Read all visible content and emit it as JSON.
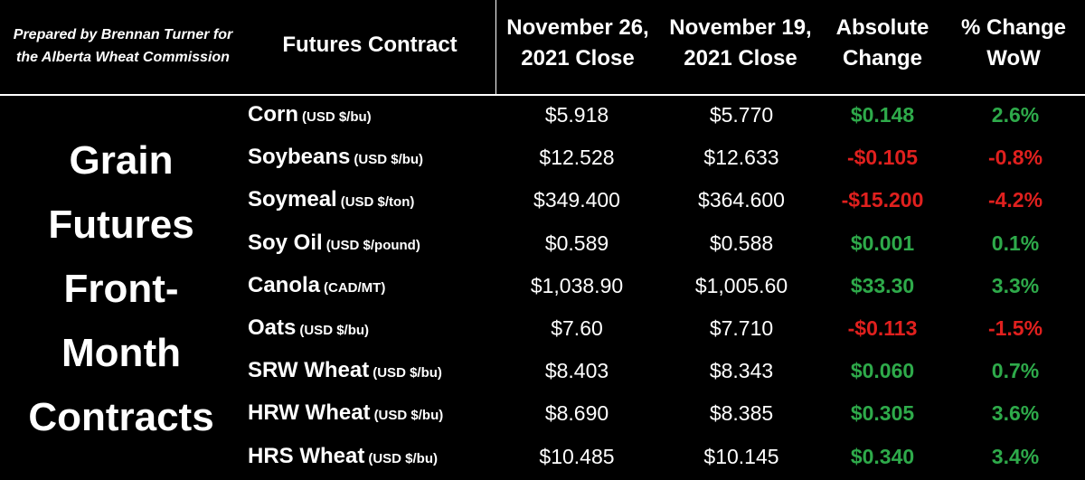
{
  "credit": {
    "line1": "Prepared by Brennan Turner for",
    "line2": "the Alberta Wheat Commission"
  },
  "headers": {
    "contract": "Futures Contract",
    "col1_line1": "November 26,",
    "col1_line2": "2021 Close",
    "col2_line1": "November 19,",
    "col2_line2": "2021 Close",
    "col3_line1": "Absolute",
    "col3_line2": "Change",
    "col4_line1": "% Change",
    "col4_line2": "WoW"
  },
  "group_label": [
    "Grain",
    "Futures",
    "Front-",
    "Month",
    "Contracts"
  ],
  "colors": {
    "positive": "#2eaa4a",
    "negative": "#e0201e"
  },
  "rows": [
    {
      "name": "Corn",
      "unit": "(USD $/bu)",
      "nov26": "$5.918",
      "nov19": "$5.770",
      "abs": "$0.148",
      "pct": "2.6%",
      "sign": "pos"
    },
    {
      "name": "Soybeans",
      "unit": "(USD $/bu)",
      "nov26": "$12.528",
      "nov19": "$12.633",
      "abs": "-$0.105",
      "pct": "-0.8%",
      "sign": "neg"
    },
    {
      "name": "Soymeal",
      "unit": "(USD $/ton)",
      "nov26": "$349.400",
      "nov19": "$364.600",
      "abs": "-$15.200",
      "pct": "-4.2%",
      "sign": "neg"
    },
    {
      "name": "Soy Oil",
      "unit": "(USD $/pound)",
      "nov26": "$0.589",
      "nov19": "$0.588",
      "abs": "$0.001",
      "pct": "0.1%",
      "sign": "pos"
    },
    {
      "name": "Canola",
      "unit": "(CAD/MT)",
      "nov26": "$1,038.90",
      "nov19": "$1,005.60",
      "abs": "$33.30",
      "pct": "3.3%",
      "sign": "pos"
    },
    {
      "name": "Oats",
      "unit": "(USD $/bu)",
      "nov26": "$7.60",
      "nov19": "$7.710",
      "abs": "-$0.113",
      "pct": "-1.5%",
      "sign": "neg"
    },
    {
      "name": "SRW Wheat",
      "unit": "(USD $/bu)",
      "nov26": "$8.403",
      "nov19": "$8.343",
      "abs": "$0.060",
      "pct": "0.7%",
      "sign": "pos"
    },
    {
      "name": "HRW Wheat",
      "unit": "(USD $/bu)",
      "nov26": "$8.690",
      "nov19": "$8.385",
      "abs": "$0.305",
      "pct": "3.6%",
      "sign": "pos"
    },
    {
      "name": "HRS Wheat",
      "unit": "(USD $/bu)",
      "nov26": "$10.485",
      "nov19": "$10.145",
      "abs": "$0.340",
      "pct": "3.4%",
      "sign": "pos"
    }
  ]
}
